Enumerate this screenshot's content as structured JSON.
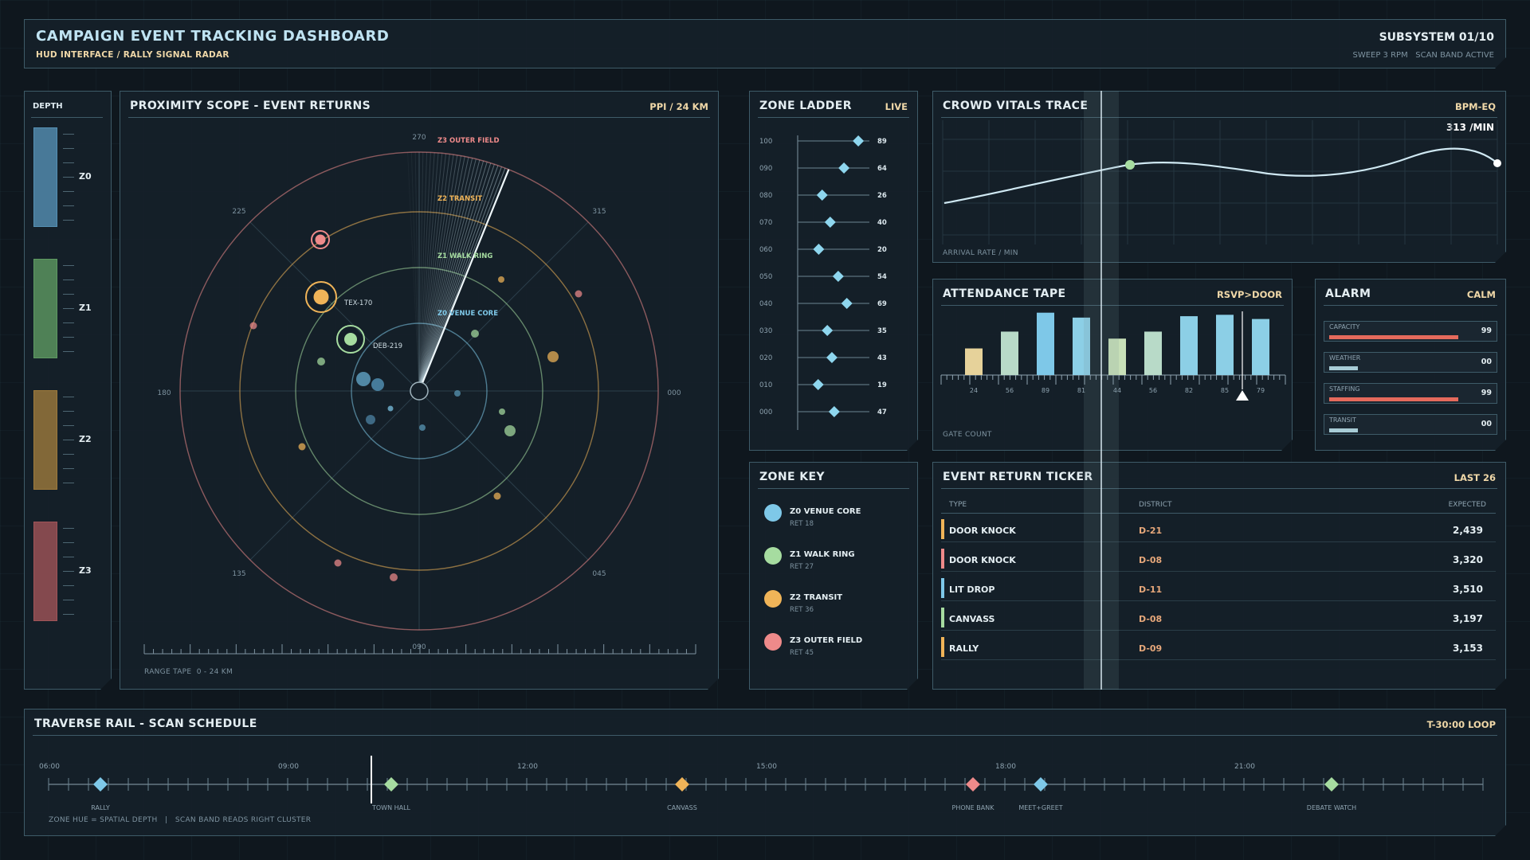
{
  "header": {
    "title": "CAMPAIGN EVENT TRACKING DASHBOARD",
    "subtitle": "HUD INTERFACE / RALLY SIGNAL RADAR",
    "subsystem": "SUBSYSTEM 01/10",
    "status": "SWEEP 3 RPM   SCAN BAND ACTIVE"
  },
  "depth": {
    "title": "DEPTH",
    "zones": [
      {
        "label": "Z0",
        "color": "#5590b4"
      },
      {
        "label": "Z1",
        "color": "#5e9a62"
      },
      {
        "label": "Z2",
        "color": "#9e7a3c"
      },
      {
        "label": "Z3",
        "color": "#a05458"
      }
    ]
  },
  "scope": {
    "title": "PROXIMITY SCOPE - EVENT RETURNS",
    "tag": "PPI / 24 KM",
    "bearings": {
      "b270": "270",
      "b315": "315",
      "b225": "225",
      "b180": "180",
      "b000": "000",
      "b135": "135",
      "b045": "045",
      "b090": "090"
    },
    "rings": [
      {
        "label": "Z0 VENUE CORE",
        "color": "#7ec8e8"
      },
      {
        "label": "Z1 WALK RING",
        "color": "#a6dca0"
      },
      {
        "label": "Z2 TRANSIT",
        "color": "#f0b458"
      },
      {
        "label": "Z3 OUTER FIELD",
        "color": "#ee8a8a"
      }
    ],
    "targets": [
      {
        "label": "TEX-170",
        "color": "#f0b458"
      },
      {
        "label": "DEB-219",
        "color": "#a6dca0"
      }
    ],
    "range_tape": "RANGE TAPE  0 - 24 KM"
  },
  "ladder": {
    "title": "ZONE LADDER",
    "tag": "LIVE",
    "rows": [
      {
        "level": "100",
        "value": 89
      },
      {
        "level": "090",
        "value": 64
      },
      {
        "level": "080",
        "value": 26
      },
      {
        "level": "070",
        "value": 40
      },
      {
        "level": "060",
        "value": 20
      },
      {
        "level": "050",
        "value": 54
      },
      {
        "level": "040",
        "value": 69
      },
      {
        "level": "030",
        "value": 35
      },
      {
        "level": "020",
        "value": 43
      },
      {
        "level": "010",
        "value": 19
      },
      {
        "level": "000",
        "value": 47
      }
    ]
  },
  "zonekey": {
    "title": "ZONE KEY",
    "items": [
      {
        "name": "Z0 VENUE CORE",
        "ret": "RET 18",
        "color": "#7ec8e8"
      },
      {
        "name": "Z1 WALK RING",
        "ret": "RET 27",
        "color": "#a6dca0"
      },
      {
        "name": "Z2 TRANSIT",
        "ret": "RET 36",
        "color": "#f0b458"
      },
      {
        "name": "Z3 OUTER FIELD",
        "ret": "RET 45",
        "color": "#ee8a8a"
      }
    ]
  },
  "vitals": {
    "title": "CROWD VITALS TRACE",
    "tag": "BPM-EQ",
    "readout": "313 /MIN",
    "axis_label": "ARRIVAL RATE / MIN"
  },
  "attendance": {
    "title": "ATTENDANCE TAPE",
    "tag": "RSVP>DOOR",
    "footer": "GATE COUNT",
    "bars": [
      {
        "label": "24",
        "value": 38,
        "color": "#e6d29a"
      },
      {
        "label": "56",
        "value": 62,
        "color": "#b8dac8"
      },
      {
        "label": "89",
        "value": 89,
        "color": "#7ec8e8"
      },
      {
        "label": "81",
        "value": 82,
        "color": "#8ccfe6"
      },
      {
        "label": "44",
        "value": 52,
        "color": "#c8e0b8"
      },
      {
        "label": "56",
        "value": 62,
        "color": "#b8dac8"
      },
      {
        "label": "82",
        "value": 84,
        "color": "#8ccfe6"
      },
      {
        "label": "85",
        "value": 86,
        "color": "#8ccfe6"
      },
      {
        "label": "79",
        "value": 80,
        "color": "#8ccfe6"
      }
    ]
  },
  "alarm": {
    "title": "ALARM",
    "tag": "CALM",
    "items": [
      {
        "name": "CAPACITY",
        "value": "99",
        "level": 0.99,
        "color": "#e56a5c"
      },
      {
        "name": "WEATHER",
        "value": "00",
        "level": 0.22,
        "color": "#a8ccd6"
      },
      {
        "name": "STAFFING",
        "value": "99",
        "level": 0.99,
        "color": "#e56a5c"
      },
      {
        "name": "TRANSIT",
        "value": "00",
        "level": 0.22,
        "color": "#a8ccd6"
      }
    ]
  },
  "ticker": {
    "title": "EVENT RETURN TICKER",
    "tag": "LAST 26",
    "columns": {
      "type": "TYPE",
      "district": "DISTRICT",
      "expected": "EXPECTED"
    },
    "rows": [
      {
        "type": "DOOR KNOCK",
        "district": "D-21",
        "expected": "2,439",
        "color": "#f0b458"
      },
      {
        "type": "DOOR KNOCK",
        "district": "D-08",
        "expected": "3,320",
        "color": "#ee8a8a"
      },
      {
        "type": "LIT DROP",
        "district": "D-11",
        "expected": "3,510",
        "color": "#7ec8e8"
      },
      {
        "type": "CANVASS",
        "district": "D-08",
        "expected": "3,197",
        "color": "#a6dca0"
      },
      {
        "type": "RALLY",
        "district": "D-09",
        "expected": "3,153",
        "color": "#f0b458"
      }
    ]
  },
  "rail": {
    "title": "TRAVERSE RAIL - SCAN SCHEDULE",
    "tag": "T-30:00 LOOP",
    "times": [
      "06:00",
      "09:00",
      "12:00",
      "15:00",
      "18:00",
      "21:00"
    ],
    "events": [
      {
        "label": "RALLY",
        "hour": 6.65,
        "color": "#7ec8e8"
      },
      {
        "label": "TOWN HALL",
        "hour": 10.3,
        "color": "#a6dca0"
      },
      {
        "label": "CANVASS",
        "hour": 13.95,
        "color": "#f0b458"
      },
      {
        "label": "PHONE BANK",
        "hour": 17.6,
        "color": "#ee8a8a"
      },
      {
        "label": "MEET+GREET",
        "hour": 18.45,
        "color": "#7ec8e8"
      },
      {
        "label": "DEBATE WATCH",
        "hour": 22.1,
        "color": "#a6dca0"
      }
    ],
    "footer": "ZONE HUE = SPATIAL DEPTH   |   SCAN BAND READS RIGHT CLUSTER"
  }
}
